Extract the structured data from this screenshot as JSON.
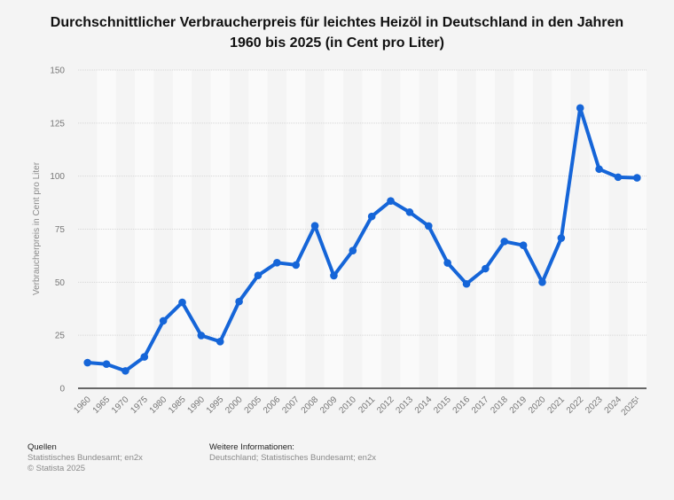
{
  "title": "Durchschnittlicher Verbraucherpreis für leichtes Heizöl in Deutschland in den Jahren 1960 bis 2025 (in Cent pro Liter)",
  "colors": {
    "line": "#1565d8",
    "axis": "#111111",
    "grid": "#d6d6d6",
    "tick_text": "#777777",
    "band_light": "#fafafa",
    "background": "#f4f4f4"
  },
  "chart_data": {
    "type": "line",
    "title": "Durchschnittlicher Verbraucherpreis für leichtes Heizöl in Deutschland in den Jahren 1960 bis 2025 (in Cent pro Liter)",
    "xlabel": "",
    "ylabel": "Verbraucherpreis in Cent pro Liter",
    "ylim": [
      0,
      150
    ],
    "yticks": [
      0,
      25,
      50,
      75,
      100,
      125,
      150
    ],
    "grid": true,
    "legend": "none",
    "categories": [
      "1960",
      "1965",
      "1970",
      "1975",
      "1980",
      "1985",
      "1990",
      "1995",
      "2000",
      "2005",
      "2006",
      "2007",
      "2008",
      "2009",
      "2010",
      "2011",
      "2012",
      "2013",
      "2014",
      "2015",
      "2016",
      "2017",
      "2018",
      "2019",
      "2020",
      "2021",
      "2022",
      "2023",
      "2024",
      "2025¹"
    ],
    "series": [
      {
        "name": "Verbraucherpreis",
        "values": [
          12.1,
          11.4,
          8.2,
          14.8,
          31.8,
          40.5,
          24.9,
          22.0,
          40.9,
          53.2,
          59.2,
          58.1,
          76.6,
          53.1,
          64.9,
          81.0,
          88.3,
          83.0,
          76.5,
          59.1,
          49.2,
          56.4,
          69.2,
          67.4,
          50.0,
          70.8,
          132.1,
          103.3,
          99.5,
          99.2
        ]
      }
    ]
  },
  "footer": {
    "sources_heading": "Quellen",
    "sources_text": "Statistisches Bundesamt; en2x",
    "copyright": "© Statista 2025",
    "info_heading": "Weitere Informationen:",
    "info_text": "Deutschland; Statistisches Bundesamt; en2x"
  }
}
